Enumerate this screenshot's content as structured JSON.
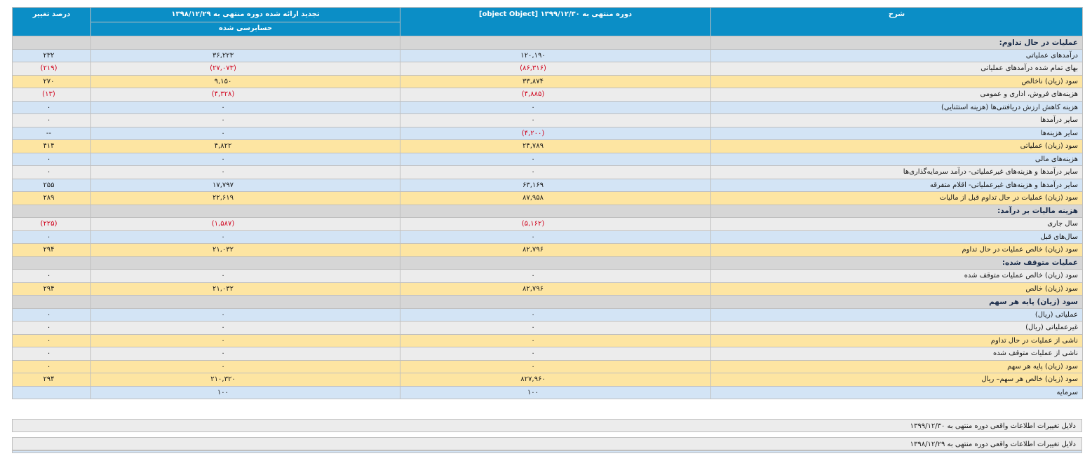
{
  "headers": {
    "description": "شرح",
    "current_period": "دوره منتهی به ۱۳۹۹/۱۲/۳۰ [object Object]",
    "restated_period": "تجدید ارائه شده دوره منتهی به ۱۳۹۸/۱۲/۲۹",
    "restated_sub": "حسابرسی شده",
    "change_pct": "درصد تغییر"
  },
  "rows": [
    {
      "type": "sect",
      "desc": "عملیات در حال تداوم:"
    },
    {
      "type": "blue",
      "desc": "درآمدهای عملیاتی",
      "cur": "۱۲۰,۱۹۰",
      "prev": "۳۶,۲۲۳",
      "pct": "۲۳۲"
    },
    {
      "type": "gray",
      "desc": "بهای تمام شده درآمدهای عملیاتی",
      "cur": "(۸۶,۳۱۶)",
      "prev": "(۲۷,۰۷۳)",
      "pct": "(۲۱۹)",
      "neg": true
    },
    {
      "type": "gold",
      "desc": "سود (زیان) ناخالص",
      "cur": "۳۳,۸۷۴",
      "prev": "۹,۱۵۰",
      "pct": "۲۷۰"
    },
    {
      "type": "gray",
      "desc": "هزینه‌های فروش، اداری و عمومی",
      "cur": "(۴,۸۸۵)",
      "prev": "(۴,۳۲۸)",
      "pct": "(۱۳)",
      "neg": true
    },
    {
      "type": "blue",
      "desc": "هزینه کاهش ارزش دریافتنی‌ها (هزینه استثنایی)",
      "cur": "۰",
      "prev": "۰",
      "pct": "۰"
    },
    {
      "type": "gray",
      "desc": "سایر درآمدها",
      "cur": "۰",
      "prev": "۰",
      "pct": "۰"
    },
    {
      "type": "blue",
      "desc": "سایر هزینه‌ها",
      "cur": "(۴,۲۰۰)",
      "prev": "۰",
      "pct": "--",
      "negCur": true
    },
    {
      "type": "gold",
      "desc": "سود (زیان) عملیاتی",
      "cur": "۲۴,۷۸۹",
      "prev": "۴,۸۲۲",
      "pct": "۴۱۴"
    },
    {
      "type": "blue",
      "desc": "هزینه‌های مالی",
      "cur": "۰",
      "prev": "۰",
      "pct": "۰"
    },
    {
      "type": "gray",
      "desc": "سایر درآمدها و هزینه‌های غیرعملیاتی- درآمد سرمایه‌گذاری‌ها",
      "cur": "۰",
      "prev": "۰",
      "pct": "۰"
    },
    {
      "type": "blue",
      "desc": "سایر درآمدها و هزینه‌های غیرعملیاتی- اقلام متفرقه",
      "cur": "۶۳,۱۶۹",
      "prev": "۱۷,۷۹۷",
      "pct": "۲۵۵"
    },
    {
      "type": "gold",
      "desc": "سود (زیان) عملیات در حال تداوم قبل از مالیات",
      "cur": "۸۷,۹۵۸",
      "prev": "۲۲,۶۱۹",
      "pct": "۲۸۹"
    },
    {
      "type": "sect",
      "desc": "هزینه مالیات بر درآمد:"
    },
    {
      "type": "gray",
      "desc": "سال جاری",
      "cur": "(۵,۱۶۲)",
      "prev": "(۱,۵۸۷)",
      "pct": "(۲۲۵)",
      "neg": true
    },
    {
      "type": "blue",
      "desc": "سال‌های قبل",
      "cur": "۰",
      "prev": "۰",
      "pct": "۰"
    },
    {
      "type": "gold",
      "desc": "سود (زیان) خالص عملیات در حال تداوم",
      "cur": "۸۲,۷۹۶",
      "prev": "۲۱,۰۳۲",
      "pct": "۲۹۴"
    },
    {
      "type": "sect",
      "desc": "عملیات متوقف شده:"
    },
    {
      "type": "gray",
      "desc": "سود (زیان) خالص عملیات متوقف شده",
      "cur": "۰",
      "prev": "۰",
      "pct": "۰"
    },
    {
      "type": "gold",
      "desc": "سود (زیان) خالص",
      "cur": "۸۲,۷۹۶",
      "prev": "۲۱,۰۳۲",
      "pct": "۲۹۴"
    },
    {
      "type": "sect",
      "desc": "سود (زیان) پایه هر سهم"
    },
    {
      "type": "blue",
      "desc": "عملیاتی (ریال)",
      "cur": "۰",
      "prev": "۰",
      "pct": "۰"
    },
    {
      "type": "gray",
      "desc": "غیرعملیاتی (ریال)",
      "cur": "۰",
      "prev": "۰",
      "pct": "۰"
    },
    {
      "type": "gold",
      "desc": "ناشی از عملیات در حال تداوم",
      "cur": "۰",
      "prev": "۰",
      "pct": "۰"
    },
    {
      "type": "gray",
      "desc": "ناشی از عملیات متوقف شده",
      "cur": "۰",
      "prev": "۰",
      "pct": "۰"
    },
    {
      "type": "gold",
      "desc": "سود (زیان) پایه هر سهم",
      "cur": "۰",
      "prev": "۰",
      "pct": "۰"
    },
    {
      "type": "gold",
      "desc": "سود (زیان) خالص هر سهم– ریال",
      "cur": "۸۲۷,۹۶۰",
      "prev": "۲۱۰,۳۲۰",
      "pct": "۲۹۴"
    },
    {
      "type": "blue",
      "desc": "سرمایه",
      "cur": "۱۰۰",
      "prev": "۱۰۰",
      "pct": ""
    }
  ],
  "notes": {
    "current_reason": "دلایل تغییرات اطلاعات واقعی دوره منتهی به ۱۳۹۹/۱۲/۳۰",
    "prior_reason": "دلایل تغییرات اطلاعات واقعی دوره منتهی به ۱۳۹۸/۱۲/۲۹"
  },
  "colors": {
    "header_bg": "#0b8ec6",
    "row_blue": "#d3e4f5",
    "row_gray": "#ececec",
    "row_gold": "#fde5a2",
    "row_section": "#d6d6d6",
    "negative": "#d0021b"
  }
}
